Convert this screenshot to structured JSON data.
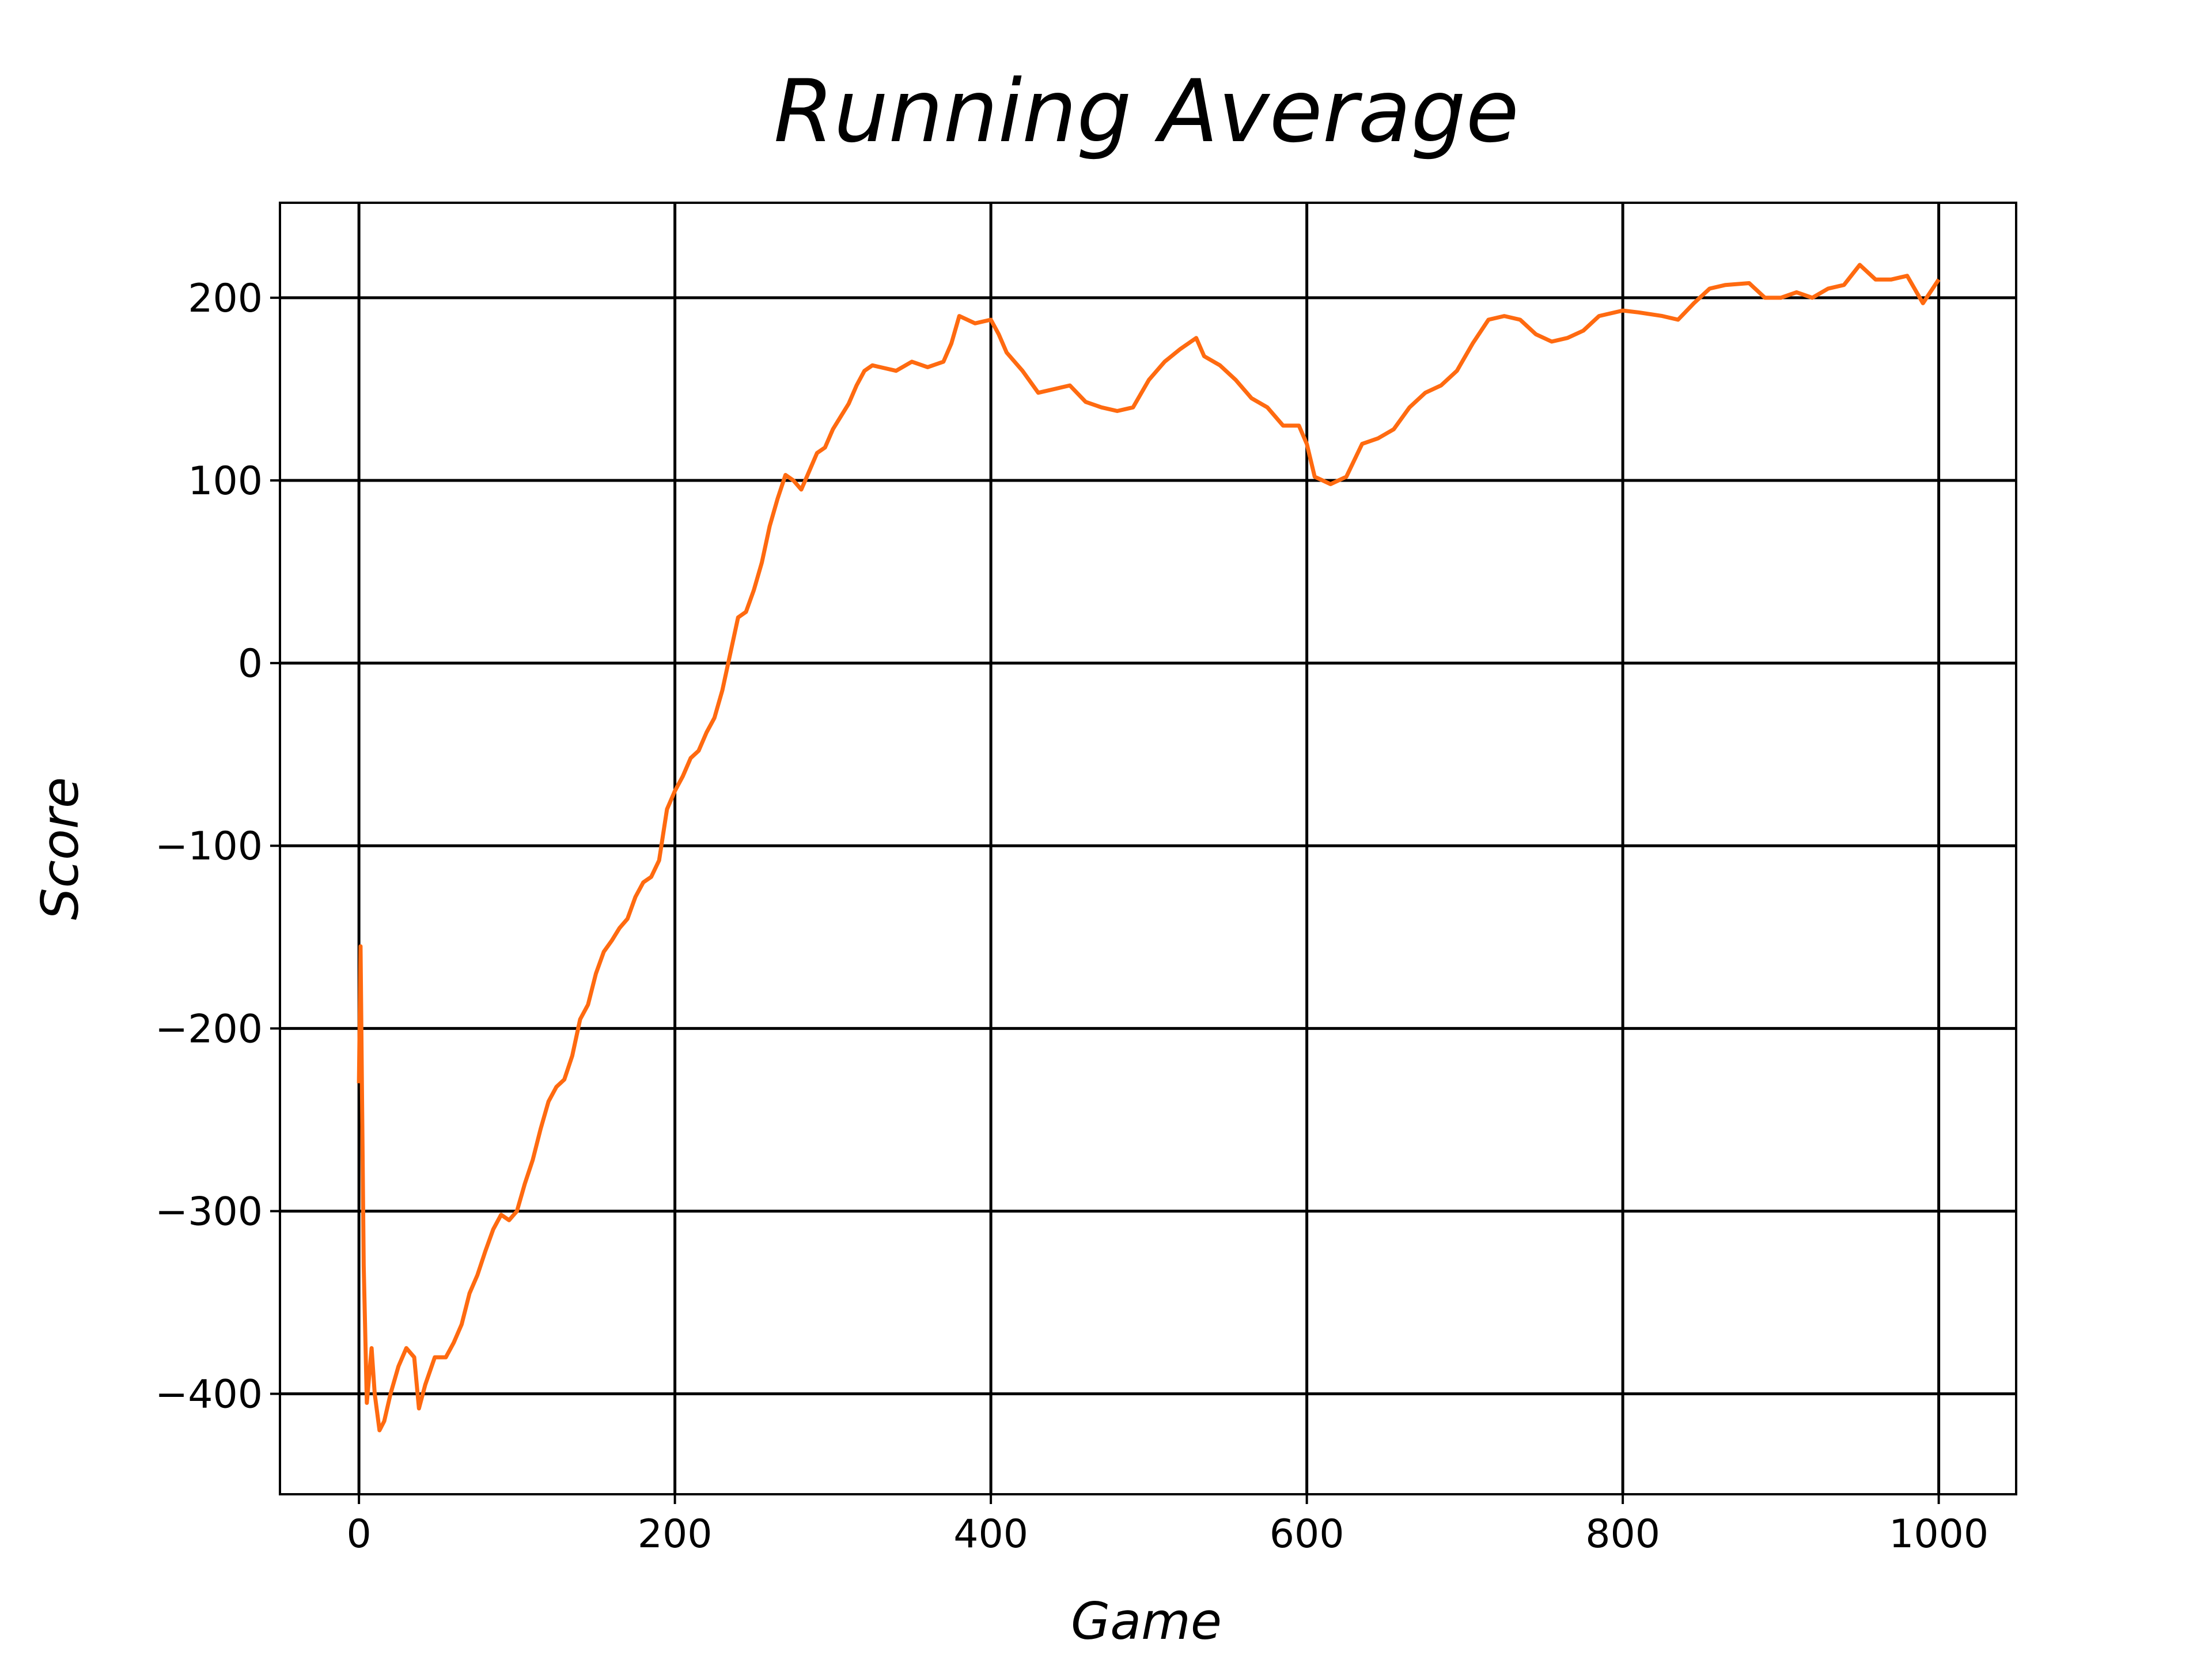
{
  "chart_data": {
    "type": "line",
    "title": "Running Average",
    "x_label": "Game",
    "y_label": "Score",
    "x": [
      0,
      1,
      3,
      5,
      8,
      10,
      13,
      16,
      20,
      25,
      30,
      35,
      38,
      42,
      48,
      55,
      60,
      65,
      70,
      75,
      80,
      85,
      90,
      95,
      100,
      105,
      110,
      115,
      120,
      125,
      130,
      135,
      140,
      145,
      150,
      155,
      160,
      165,
      170,
      175,
      180,
      185,
      190,
      195,
      200,
      205,
      210,
      215,
      220,
      225,
      230,
      235,
      240,
      245,
      250,
      255,
      260,
      265,
      270,
      275,
      280,
      285,
      290,
      295,
      300,
      305,
      310,
      315,
      320,
      325,
      330,
      340,
      350,
      360,
      370,
      375,
      380,
      390,
      400,
      405,
      410,
      420,
      430,
      440,
      450,
      460,
      470,
      480,
      490,
      500,
      510,
      520,
      530,
      535,
      545,
      555,
      565,
      575,
      585,
      595,
      600,
      605,
      615,
      625,
      635,
      645,
      655,
      665,
      675,
      685,
      695,
      705,
      715,
      725,
      735,
      745,
      755,
      765,
      775,
      785,
      800,
      810,
      825,
      835,
      845,
      855,
      865,
      880,
      890,
      900,
      910,
      920,
      930,
      940,
      950,
      960,
      970,
      980,
      990,
      1000
    ],
    "values": [
      -230,
      -155,
      -330,
      -405,
      -375,
      -400,
      -420,
      -415,
      -400,
      -385,
      -375,
      -380,
      -408,
      -395,
      -380,
      -380,
      -372,
      -362,
      -345,
      -335,
      -322,
      -310,
      -302,
      -305,
      -300,
      -285,
      -272,
      -255,
      -240,
      -232,
      -228,
      -215,
      -195,
      -187,
      -170,
      -158,
      -152,
      -145,
      -140,
      -128,
      -120,
      -117,
      -108,
      -80,
      -70,
      -62,
      -52,
      -48,
      -38,
      -30,
      -15,
      5,
      25,
      28,
      40,
      55,
      75,
      90,
      103,
      100,
      95,
      105,
      115,
      118,
      128,
      135,
      142,
      152,
      160,
      163,
      162,
      160,
      165,
      162,
      165,
      175,
      190,
      186,
      188,
      180,
      170,
      160,
      148,
      150,
      152,
      143,
      140,
      138,
      140,
      155,
      165,
      172,
      178,
      168,
      163,
      155,
      145,
      140,
      130,
      130,
      120,
      102,
      98,
      102,
      120,
      123,
      128,
      140,
      148,
      152,
      160,
      175,
      188,
      190,
      188,
      180,
      176,
      178,
      182,
      190,
      193,
      192,
      190,
      188,
      197,
      205,
      207,
      208,
      200,
      200,
      203,
      200,
      205,
      207,
      218,
      210,
      210,
      212,
      197,
      210
    ],
    "color": "#ff6a10",
    "xlim": [
      -50,
      1049
    ],
    "ylim": [
      -455,
      252
    ],
    "xticks": [
      0,
      200,
      400,
      600,
      800,
      1000
    ],
    "yticks": [
      {
        "value": -400,
        "label": "−400"
      },
      {
        "value": -300,
        "label": "−300"
      },
      {
        "value": -200,
        "label": "−200"
      },
      {
        "value": -100,
        "label": "−100"
      },
      0,
      100,
      200
    ],
    "grid": true
  }
}
